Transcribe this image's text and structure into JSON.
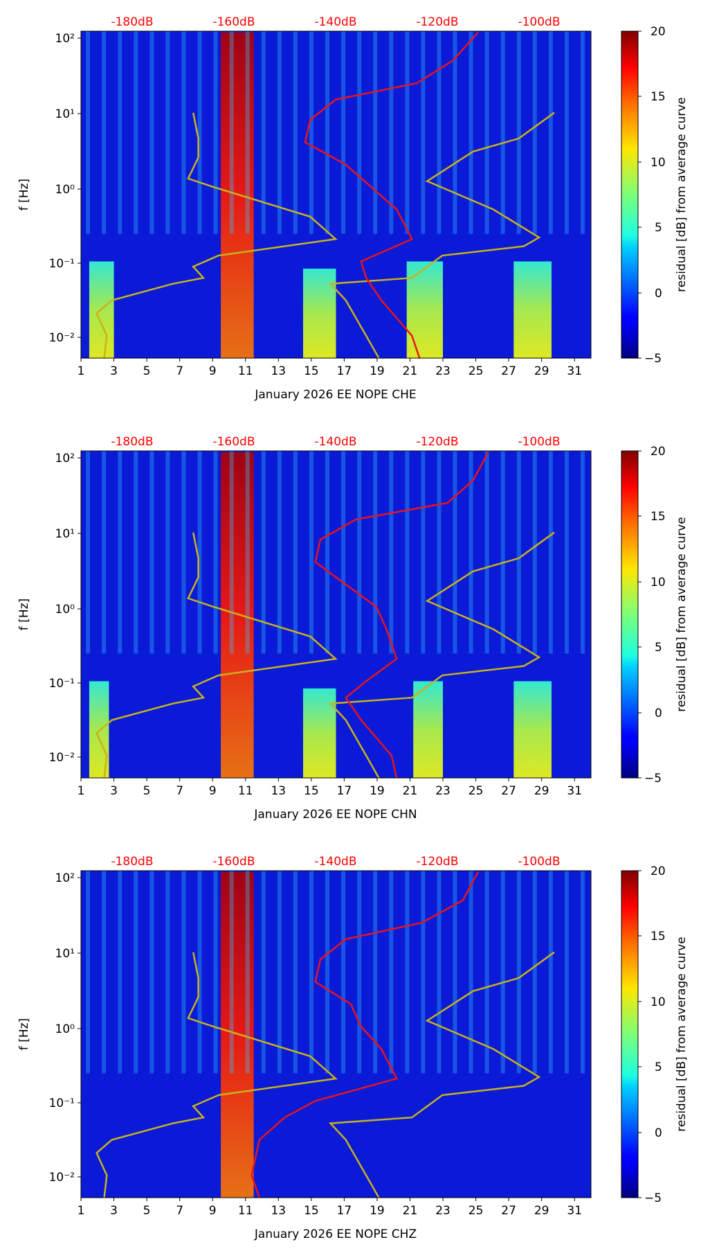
{
  "figure": {
    "month_label": "January 2026",
    "network": "EE",
    "station": "NOPE"
  },
  "colors": {
    "psd_curve": "#e8141e",
    "model_curve": "#c9b21c",
    "db_label": "#ff0000"
  },
  "chart_data": [
    {
      "type": "heatmap",
      "channel": "CHE",
      "xlabel": "January 2026 EE NOPE  CHE",
      "ylabel": "f [Hz]",
      "colorbar_label": "residual [dB] from average curve",
      "x_ticks": [
        "1",
        "3",
        "5",
        "7",
        "9",
        "11",
        "13",
        "15",
        "17",
        "19",
        "21",
        "23",
        "25",
        "27",
        "29",
        "31"
      ],
      "xlim": [
        1,
        32
      ],
      "ylim": [
        0.005,
        125
      ],
      "y_ticks": [
        "10⁻²",
        "10⁻¹",
        "10⁰",
        "10¹",
        "10²"
      ],
      "clim": [
        -5,
        20
      ],
      "colorbar_ticks": [
        "−5",
        "0",
        "5",
        "10",
        "15",
        "20"
      ],
      "db_axis_labels": [
        "-180dB",
        "-160dB",
        "-140dB",
        "-120dB",
        "-100dB"
      ],
      "hot_day_bands": [
        {
          "day_from": 1.5,
          "day_to": 3,
          "f_max": 0.1
        },
        {
          "day_from": 9.5,
          "day_to": 11.5,
          "f_max": 120
        },
        {
          "day_from": 20.8,
          "day_to": 23,
          "f_max": 0.1
        },
        {
          "day_from": 27.3,
          "day_to": 29.6,
          "f_max": 0.1
        },
        {
          "day_from": 14.5,
          "day_to": 16.5,
          "f_max": 0.08
        }
      ],
      "psd_curve_db_vs_freq": [
        {
          "f": 0.005,
          "db": -123.5
        },
        {
          "f": 0.01,
          "db": -125.0
        },
        {
          "f": 0.03,
          "db": -131.0
        },
        {
          "f": 0.06,
          "db": -134.0
        },
        {
          "f": 0.1,
          "db": -135.0
        },
        {
          "f": 0.2,
          "db": -125.0
        },
        {
          "f": 0.5,
          "db": -128.0
        },
        {
          "f": 1.0,
          "db": -133.0
        },
        {
          "f": 2.0,
          "db": -138.0
        },
        {
          "f": 4.0,
          "db": -146.0
        },
        {
          "f": 8.0,
          "db": -145.0
        },
        {
          "f": 15.0,
          "db": -140.0
        },
        {
          "f": 25.0,
          "db": -124.0
        },
        {
          "f": 50.0,
          "db": -117.0
        },
        {
          "f": 120.0,
          "db": -112.0
        }
      ]
    },
    {
      "type": "heatmap",
      "channel": "CHN",
      "xlabel": "January 2026 EE NOPE  CHN",
      "ylabel": "f [Hz]",
      "colorbar_label": "residual [dB] from average curve",
      "x_ticks": [
        "1",
        "3",
        "5",
        "7",
        "9",
        "11",
        "13",
        "15",
        "17",
        "19",
        "21",
        "23",
        "25",
        "27",
        "29",
        "31"
      ],
      "xlim": [
        1,
        32
      ],
      "ylim": [
        0.005,
        125
      ],
      "y_ticks": [
        "10⁻²",
        "10⁻¹",
        "10⁰",
        "10¹",
        "10²"
      ],
      "clim": [
        -5,
        20
      ],
      "colorbar_ticks": [
        "−5",
        "0",
        "5",
        "10",
        "15",
        "20"
      ],
      "db_axis_labels": [
        "-180dB",
        "-160dB",
        "-140dB",
        "-120dB",
        "-100dB"
      ],
      "hot_day_bands": [
        {
          "day_from": 1.5,
          "day_to": 2.7,
          "f_max": 0.1
        },
        {
          "day_from": 9.5,
          "day_to": 11.5,
          "f_max": 120
        },
        {
          "day_from": 21.2,
          "day_to": 23,
          "f_max": 0.1
        },
        {
          "day_from": 27.3,
          "day_to": 29.6,
          "f_max": 0.1
        },
        {
          "day_from": 14.5,
          "day_to": 16.5,
          "f_max": 0.08
        }
      ],
      "psd_curve_db_vs_freq": [
        {
          "f": 0.005,
          "db": -128.0
        },
        {
          "f": 0.01,
          "db": -129.0
        },
        {
          "f": 0.03,
          "db": -135.0
        },
        {
          "f": 0.06,
          "db": -138.0
        },
        {
          "f": 0.1,
          "db": -134.0
        },
        {
          "f": 0.2,
          "db": -128.0
        },
        {
          "f": 0.5,
          "db": -130.0
        },
        {
          "f": 1.0,
          "db": -132.0
        },
        {
          "f": 2.0,
          "db": -138.0
        },
        {
          "f": 4.0,
          "db": -144.0
        },
        {
          "f": 8.0,
          "db": -143.0
        },
        {
          "f": 15.0,
          "db": -136.0
        },
        {
          "f": 25.0,
          "db": -118.0
        },
        {
          "f": 50.0,
          "db": -113.0
        },
        {
          "f": 120.0,
          "db": -110.0
        }
      ]
    },
    {
      "type": "heatmap",
      "channel": "CHZ",
      "xlabel": "January 2026 EE NOPE  CHZ",
      "ylabel": "f [Hz]",
      "colorbar_label": "residual [dB] from average curve",
      "x_ticks": [
        "1",
        "3",
        "5",
        "7",
        "9",
        "11",
        "13",
        "15",
        "17",
        "19",
        "21",
        "23",
        "25",
        "27",
        "29",
        "31"
      ],
      "xlim": [
        1,
        32
      ],
      "ylim": [
        0.005,
        125
      ],
      "y_ticks": [
        "10⁻²",
        "10⁻¹",
        "10⁰",
        "10¹",
        "10²"
      ],
      "clim": [
        -5,
        20
      ],
      "colorbar_ticks": [
        "−5",
        "0",
        "5",
        "10",
        "15",
        "20"
      ],
      "db_axis_labels": [
        "-180dB",
        "-160dB",
        "-140dB",
        "-120dB",
        "-100dB"
      ],
      "hot_day_bands": [
        {
          "day_from": 9.5,
          "day_to": 11.5,
          "f_max": 120
        }
      ],
      "psd_curve_db_vs_freq": [
        {
          "f": 0.005,
          "db": -155.0
        },
        {
          "f": 0.01,
          "db": -156.5
        },
        {
          "f": 0.03,
          "db": -155.0
        },
        {
          "f": 0.06,
          "db": -150.0
        },
        {
          "f": 0.1,
          "db": -144.0
        },
        {
          "f": 0.2,
          "db": -128.0
        },
        {
          "f": 0.5,
          "db": -131.0
        },
        {
          "f": 1.0,
          "db": -135.0
        },
        {
          "f": 2.0,
          "db": -137.0
        },
        {
          "f": 4.0,
          "db": -144.0
        },
        {
          "f": 8.0,
          "db": -143.0
        },
        {
          "f": 15.0,
          "db": -138.0
        },
        {
          "f": 25.0,
          "db": -123.0
        },
        {
          "f": 50.0,
          "db": -115.0
        },
        {
          "f": 120.0,
          "db": -112.0
        }
      ]
    }
  ],
  "model_curves": {
    "description": "Peterson NLNM / NHNM (yellow)",
    "nlnm_db_vs_freq": [
      {
        "f": 0.005,
        "db": -185.5
      },
      {
        "f": 0.01,
        "db": -185.0
      },
      {
        "f": 0.02,
        "db": -187.0
      },
      {
        "f": 0.03,
        "db": -184.0
      },
      {
        "f": 0.05,
        "db": -172.0
      },
      {
        "f": 0.06,
        "db": -166.0
      },
      {
        "f": 0.085,
        "db": -168.0
      },
      {
        "f": 0.12,
        "db": -163.0
      },
      {
        "f": 0.2,
        "db": -140.0
      },
      {
        "f": 0.4,
        "db": -145.0
      },
      {
        "f": 1.0,
        "db": -164.0
      },
      {
        "f": 1.3,
        "db": -169.0
      },
      {
        "f": 2.5,
        "db": -167.0
      },
      {
        "f": 4.5,
        "db": -167.0
      },
      {
        "f": 10.0,
        "db": -168.0
      }
    ],
    "nhnm_db_vs_freq": [
      {
        "f": 0.005,
        "db": -131.5
      },
      {
        "f": 0.01,
        "db": -134.0
      },
      {
        "f": 0.03,
        "db": -138.0
      },
      {
        "f": 0.05,
        "db": -141.0
      },
      {
        "f": 0.06,
        "db": -125.0
      },
      {
        "f": 0.12,
        "db": -119.0
      },
      {
        "f": 0.16,
        "db": -103.0
      },
      {
        "f": 0.21,
        "db": -100.0
      },
      {
        "f": 0.5,
        "db": -109.0
      },
      {
        "f": 1.2,
        "db": -122.0
      },
      {
        "f": 3.0,
        "db": -113.0
      },
      {
        "f": 4.5,
        "db": -104.0
      },
      {
        "f": 10.0,
        "db": -97.0
      }
    ]
  }
}
